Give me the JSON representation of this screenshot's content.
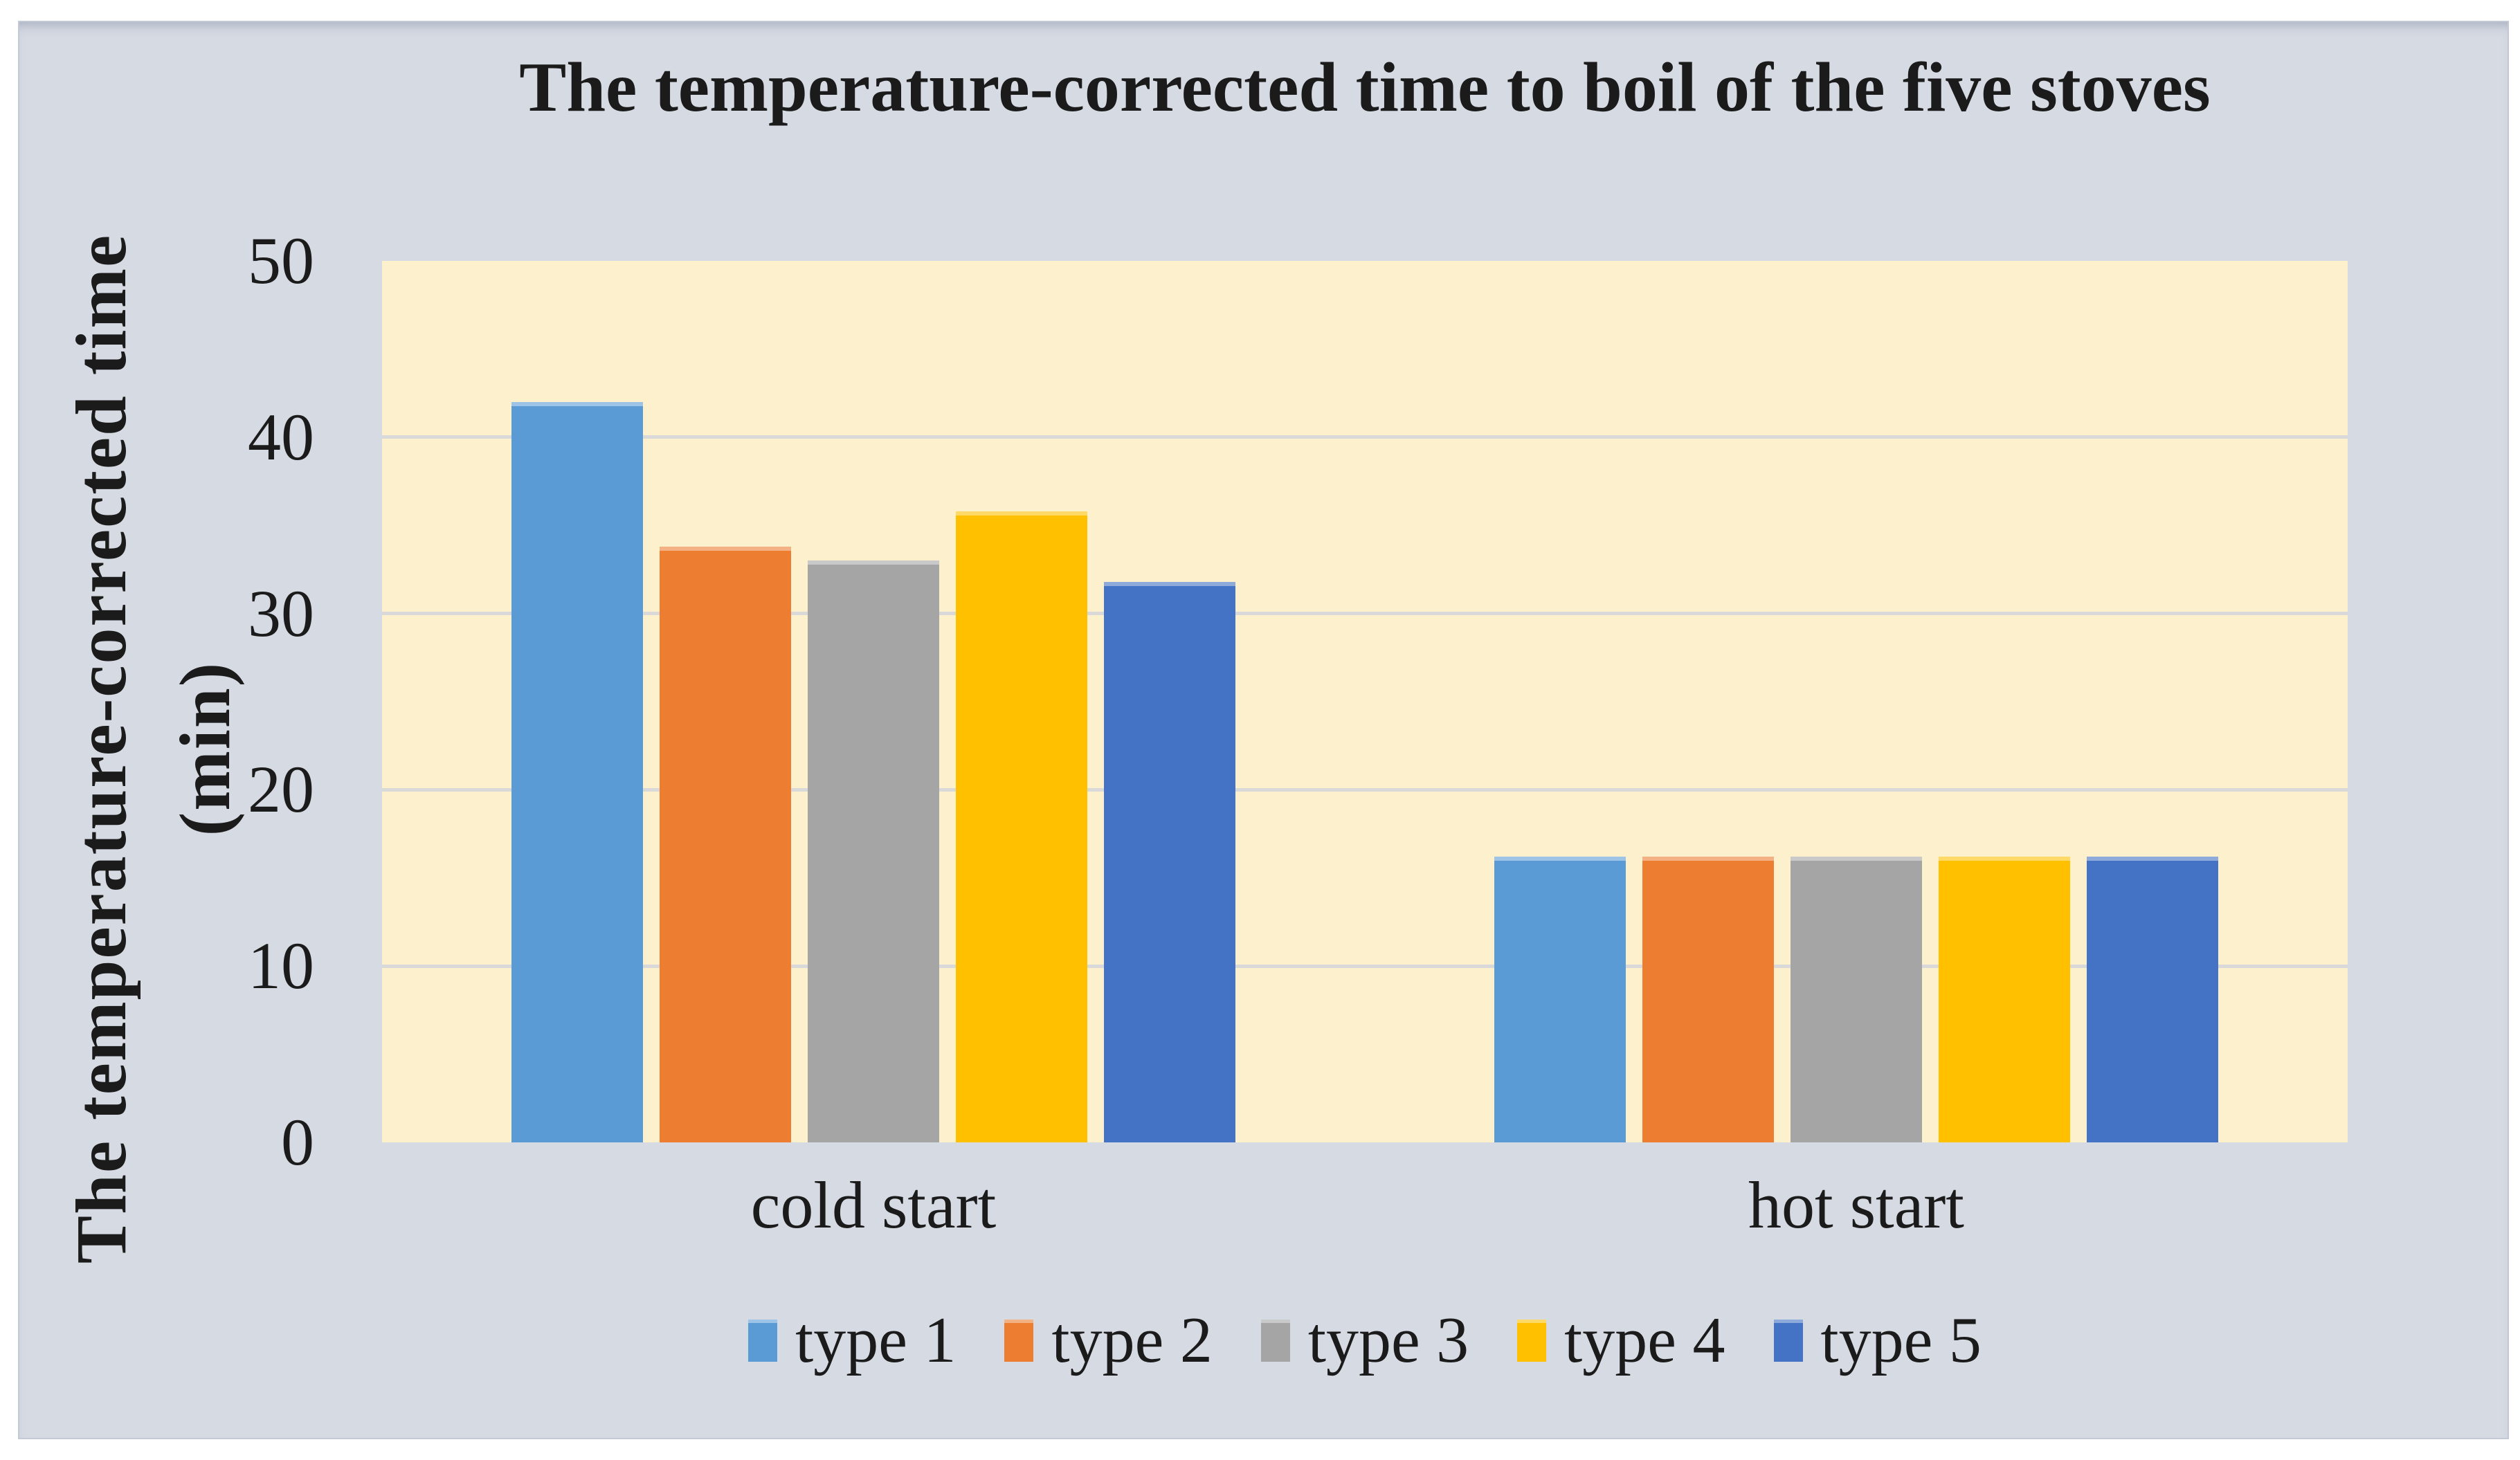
{
  "chart_data": {
    "type": "bar",
    "title": "The temperature-corrected time to boil of the five stoves",
    "ylabel": "The temperature-corrected time (min)",
    "ylabel_line1": "The temperature-corrected time",
    "ylabel_line2": "(min)",
    "xlabel": "",
    "categories": [
      "cold start",
      "hot start"
    ],
    "series": [
      {
        "name": "type 1",
        "color": "#5B9BD5",
        "highlight": "#9DC3E6",
        "values": [
          42.0,
          16.2
        ]
      },
      {
        "name": "type 2",
        "color": "#ED7D31",
        "highlight": "#F4B183",
        "values": [
          33.8,
          16.2
        ]
      },
      {
        "name": "type 3",
        "color": "#A5A5A5",
        "highlight": "#C9C9C9",
        "values": [
          33.0,
          16.2
        ]
      },
      {
        "name": "type 4",
        "color": "#FFC000",
        "highlight": "#FFD966",
        "values": [
          35.8,
          16.2
        ]
      },
      {
        "name": "type 5",
        "color": "#4472C4",
        "highlight": "#8EAADB",
        "values": [
          31.8,
          16.2
        ]
      }
    ],
    "ylim": [
      0,
      50
    ],
    "ytick_interval": 10,
    "ytick_labels": [
      "50",
      "40",
      "30",
      "20",
      "10",
      "0"
    ],
    "ytick_values": [
      50,
      40,
      30,
      20,
      10,
      0
    ],
    "grid": "horizontal",
    "legend_position": "bottom"
  },
  "styles": {
    "page_bg": "#FFFFFF",
    "frame_bg": "#D6DAE3",
    "frame_border": "#C3C9D5",
    "plot_bg": "#FDF1CD",
    "grid_color": "#D9D9D9",
    "text_color": "#1B1B1B"
  }
}
